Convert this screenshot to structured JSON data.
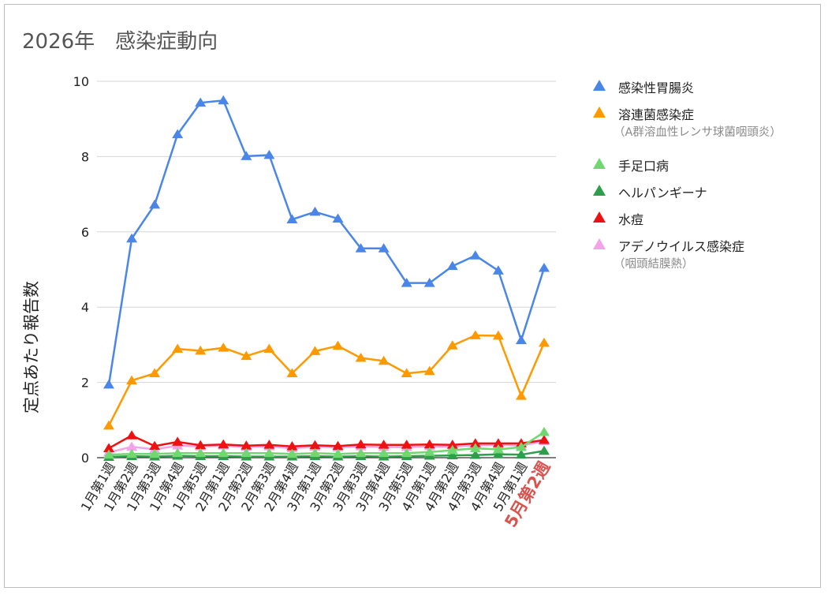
{
  "title": "2026年　感染症動向",
  "chart_data": {
    "type": "line",
    "ylabel": "定点あたり報告数",
    "xlabel": "",
    "ylim": [
      0,
      10
    ],
    "yticks": [
      0,
      2,
      4,
      6,
      8,
      10
    ],
    "grid": true,
    "legend_position": "right",
    "highlight_category": "5月第2週",
    "highlight_color": "#d9534f",
    "categories": [
      "1月第1週",
      "1月第2週",
      "1月第3週",
      "1月第4週",
      "1月第5週",
      "2月第1週",
      "2月第2週",
      "2月第3週",
      "2月第4週",
      "3月第1週",
      "3月第2週",
      "3月第3週",
      "3月第4週",
      "3月第5週",
      "4月第1週",
      "4月第2週",
      "4月第3週",
      "4月第4週",
      "5月第1週",
      "5月第2週"
    ],
    "series": [
      {
        "name": "感染性胃腸炎",
        "sub": "",
        "color": "#4a86e8",
        "values": [
          1.94,
          5.82,
          6.72,
          8.59,
          9.43,
          9.49,
          8.01,
          8.04,
          6.33,
          6.53,
          6.35,
          5.56,
          5.56,
          4.64,
          4.64,
          5.09,
          5.37,
          4.97,
          3.12,
          5.04
        ]
      },
      {
        "name": "溶連菌感染症",
        "sub": "（A群溶血性レンサ球菌咽頭炎）",
        "color": "#ff9900",
        "values": [
          0.85,
          2.05,
          2.24,
          2.89,
          2.84,
          2.92,
          2.7,
          2.89,
          2.24,
          2.83,
          2.97,
          2.65,
          2.57,
          2.24,
          2.3,
          2.98,
          3.25,
          3.24,
          1.64,
          3.05
        ]
      },
      {
        "name": "手足口病",
        "sub": "",
        "color": "#6fd86f",
        "values": [
          0.08,
          0.1,
          0.1,
          0.12,
          0.12,
          0.12,
          0.12,
          0.12,
          0.1,
          0.12,
          0.1,
          0.12,
          0.12,
          0.12,
          0.15,
          0.2,
          0.25,
          0.22,
          0.28,
          0.68
        ]
      },
      {
        "name": "ヘルパンギーナ",
        "sub": "",
        "color": "#2e9e4a",
        "values": [
          0.02,
          0.04,
          0.03,
          0.05,
          0.04,
          0.04,
          0.03,
          0.03,
          0.03,
          0.04,
          0.03,
          0.04,
          0.03,
          0.04,
          0.05,
          0.06,
          0.07,
          0.09,
          0.08,
          0.18
        ]
      },
      {
        "name": "水痘",
        "sub": "",
        "color": "#ee1111",
        "values": [
          0.25,
          0.59,
          0.31,
          0.42,
          0.33,
          0.35,
          0.32,
          0.34,
          0.3,
          0.33,
          0.31,
          0.35,
          0.34,
          0.34,
          0.35,
          0.34,
          0.38,
          0.38,
          0.38,
          0.47
        ]
      },
      {
        "name": "アデノウイルス感染症",
        "sub": "（咽頭結膜熱）",
        "color": "#f4a3e8",
        "values": [
          0.14,
          0.29,
          0.22,
          0.32,
          0.3,
          0.32,
          0.28,
          0.3,
          0.25,
          0.29,
          0.27,
          0.3,
          0.28,
          0.28,
          0.3,
          0.29,
          0.33,
          0.34,
          0.32,
          0.44
        ]
      }
    ]
  }
}
